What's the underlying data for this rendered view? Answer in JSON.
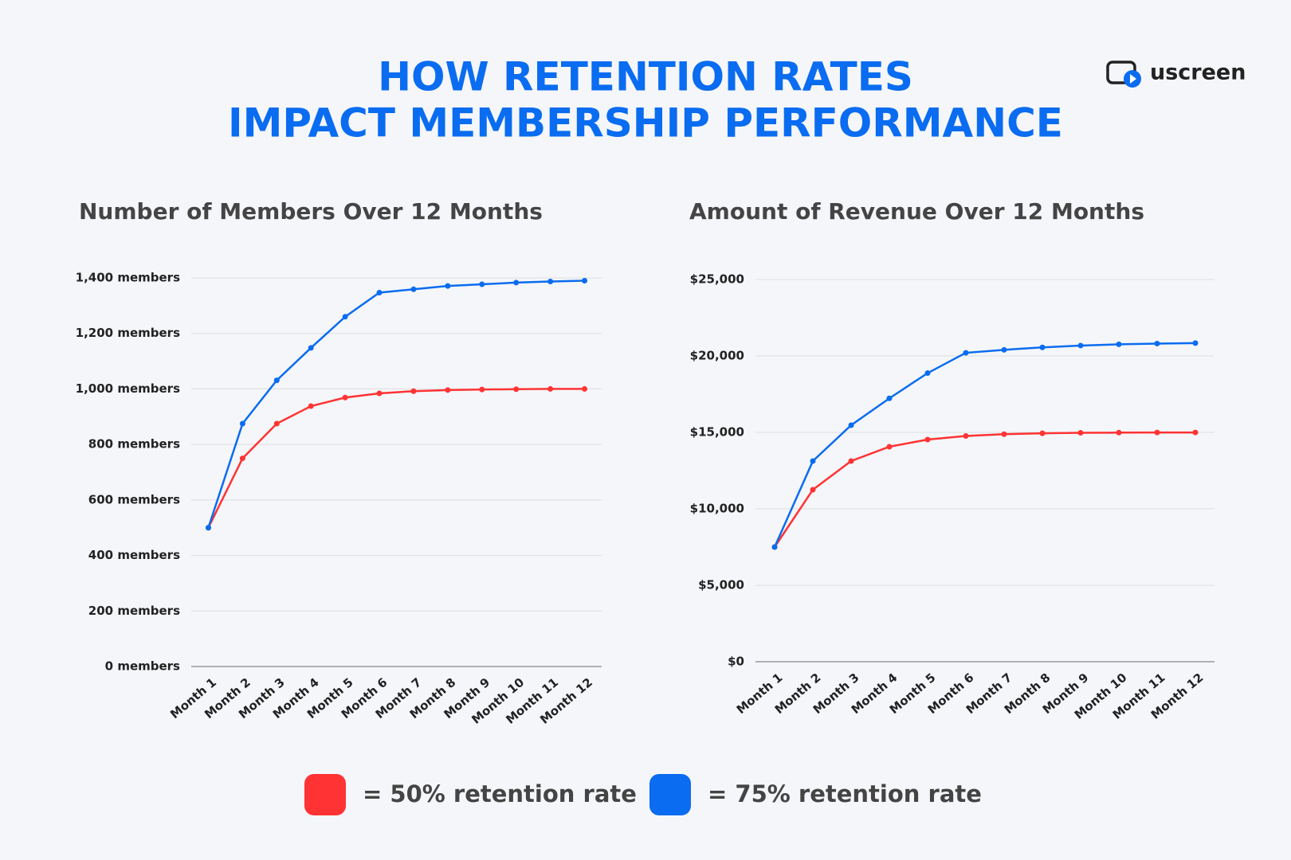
{
  "title": [
    "HOW RETENTION RATES",
    "IMPACT MEMBERSHIP PERFORMANCE"
  ],
  "logo": "uscreen",
  "chart_data": [
    {
      "type": "line",
      "title": "Number of Members Over 12 Months",
      "categories": [
        "Month 1",
        "Month 2",
        "Month 3",
        "Month 4",
        "Month 5",
        "Month 6",
        "Month 7",
        "Month 8",
        "Month 9",
        "Month 10",
        "Month 11",
        "Month 12"
      ],
      "ylim": [
        0,
        1400
      ],
      "yticks": [
        {
          "value": 0,
          "label": "0 members"
        },
        {
          "value": 200,
          "label": "200 members"
        },
        {
          "value": 400,
          "label": "400 members"
        },
        {
          "value": 600,
          "label": "600 members"
        },
        {
          "value": 800,
          "label": "800 members"
        },
        {
          "value": 1000,
          "label": "1,000 members"
        },
        {
          "value": 1200,
          "label": "1,200 members"
        },
        {
          "value": 1400,
          "label": "1,400 members"
        }
      ],
      "grid": true,
      "series": [
        {
          "name": "= 50% retention rate",
          "color": "#ff3333",
          "values": [
            500,
            750,
            875,
            938,
            969,
            984,
            992,
            996,
            998,
            999,
            1000,
            1000
          ]
        },
        {
          "name": "= 75% retention rate",
          "color": "#0a6cf0",
          "values": [
            500,
            875,
            1031,
            1148,
            1260,
            1347,
            1359,
            1371,
            1377,
            1383,
            1387,
            1390
          ]
        }
      ]
    },
    {
      "type": "line",
      "title": "Amount of Revenue Over 12 Months",
      "categories": [
        "Month 1",
        "Month 2",
        "Month 3",
        "Month 4",
        "Month 5",
        "Month 6",
        "Month 7",
        "Month 8",
        "Month 9",
        "Month 10",
        "Month 11",
        "Month 12"
      ],
      "ylim": [
        0,
        25000
      ],
      "yticks": [
        {
          "value": 0,
          "label": "$0"
        },
        {
          "value": 5000,
          "label": "$5,000"
        },
        {
          "value": 10000,
          "label": "$10,000"
        },
        {
          "value": 15000,
          "label": "$15,000"
        },
        {
          "value": 20000,
          "label": "$20,000"
        },
        {
          "value": 25000,
          "label": "$25,000"
        }
      ],
      "grid": true,
      "series": [
        {
          "color": "#ff3333",
          "values": [
            7500,
            11250,
            13125,
            14063,
            14531,
            14766,
            14883,
            14941,
            14971,
            14985,
            14993,
            14996
          ]
        },
        {
          "color": "#0a6cf0",
          "values": [
            7500,
            13125,
            15469,
            17227,
            18877,
            20205,
            20400,
            20560,
            20680,
            20760,
            20810,
            20840
          ]
        }
      ]
    }
  ]
}
